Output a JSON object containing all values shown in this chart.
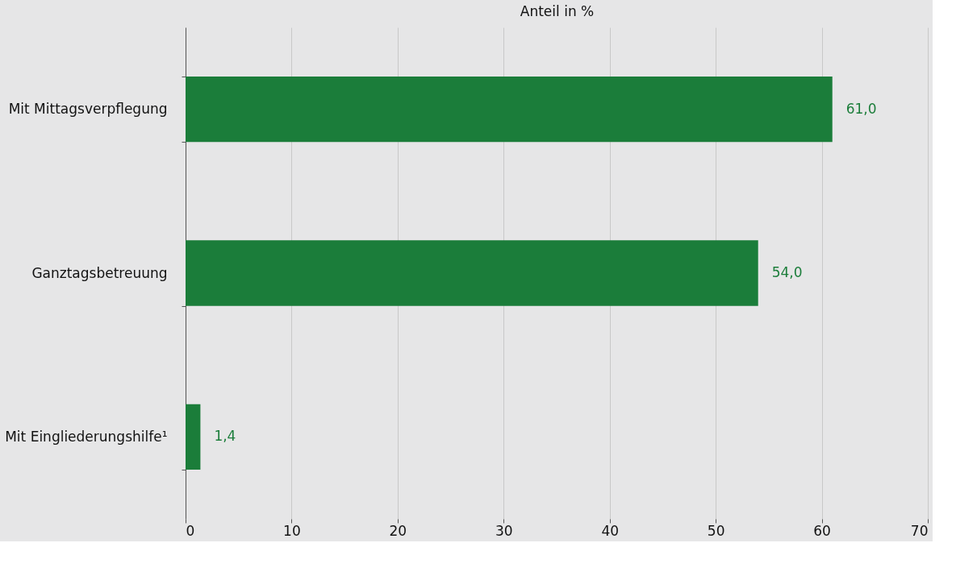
{
  "chart_data": {
    "type": "bar",
    "orientation": "horizontal",
    "xlabel": "Anteil in %",
    "categories": [
      "Mit Mittagsverpflegung",
      "Ganztagsbetreuung",
      "Mit Eingliederungshilfe¹"
    ],
    "values": [
      61.0,
      54.0,
      1.4
    ],
    "color": "#1b7d3a",
    "value_labels": [
      "61,0",
      "54,0",
      "1,4"
    ],
    "xlim": [
      0,
      70
    ],
    "xticks": [
      0,
      10,
      20,
      30,
      40,
      50,
      60,
      70
    ],
    "grid": "x"
  }
}
